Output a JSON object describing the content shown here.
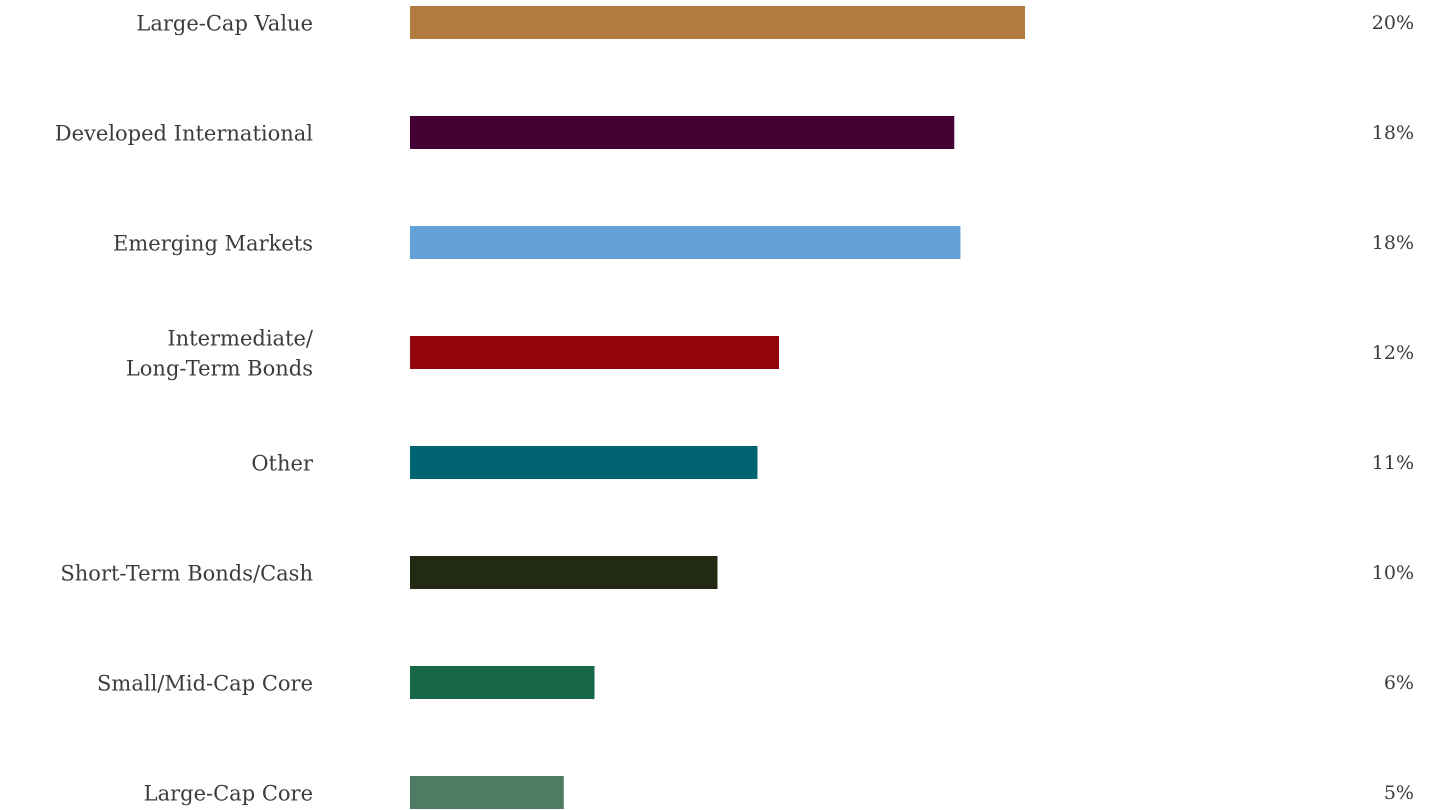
{
  "chart_data": {
    "type": "bar",
    "orientation": "horizontal",
    "categories": [
      [
        "Large-Cap Value"
      ],
      [
        "Developed International"
      ],
      [
        "Emerging Markets"
      ],
      [
        "Intermediate/",
        "Long-Term Bonds"
      ],
      [
        "Other"
      ],
      [
        "Short-Term Bonds/Cash"
      ],
      [
        "Small/Mid-Cap Core"
      ],
      [
        "Large-Cap Core"
      ]
    ],
    "values": [
      20,
      17.7,
      17.9,
      12,
      11.3,
      10,
      6,
      5
    ],
    "value_labels": [
      "20%",
      "18%",
      "18%",
      "12%",
      "11%",
      "10%",
      "6%",
      "5%"
    ],
    "colors": [
      "#B07B3C",
      "#450033",
      "#63A1D8",
      "#920509",
      "#006470",
      "#232A14",
      "#176847",
      "#4F7A63"
    ],
    "xlim": [
      0,
      20
    ],
    "grid": false,
    "legend": "none"
  }
}
